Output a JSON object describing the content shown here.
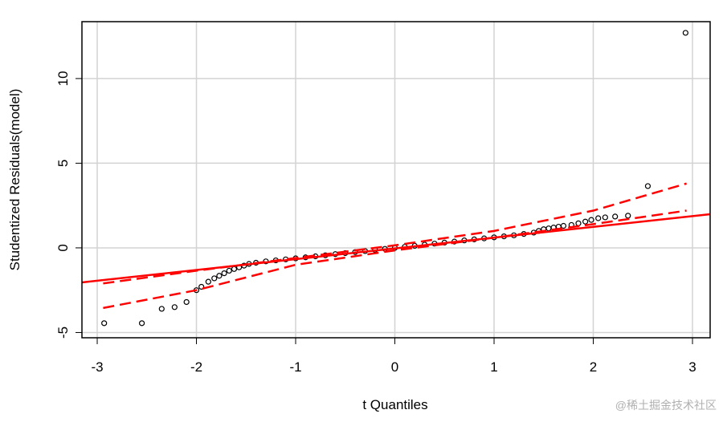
{
  "chart_data": {
    "type": "scatter",
    "xlabel": "t Quantiles",
    "ylabel": "Studentized Residuals(model)",
    "watermark": "@稀土掘金技术社区",
    "xlim": [
      -3.154,
      3.178
    ],
    "ylim": [
      -5.31,
      13.36
    ],
    "xticks": [
      -3,
      -2,
      -1,
      0,
      1,
      2,
      3
    ],
    "yticks": [
      -5,
      0,
      5,
      10
    ],
    "grid": true,
    "point_color": "#000000",
    "x": [
      -2.93,
      -2.55,
      -2.35,
      -2.22,
      -2.1,
      -2.0,
      -1.95,
      -1.88,
      -1.82,
      -1.77,
      -1.72,
      -1.67,
      -1.62,
      -1.57,
      -1.52,
      -1.47,
      -1.4,
      -1.3,
      -1.2,
      -1.1,
      -1.0,
      -0.9,
      -0.8,
      -0.7,
      -0.6,
      -0.5,
      -0.4,
      -0.3,
      -0.2,
      -0.1,
      0,
      0.1,
      0.2,
      0.3,
      0.4,
      0.5,
      0.6,
      0.7,
      0.8,
      0.9,
      1.0,
      1.1,
      1.2,
      1.3,
      1.4,
      1.45,
      1.5,
      1.55,
      1.6,
      1.65,
      1.7,
      1.78,
      1.85,
      1.92,
      1.98,
      2.05,
      2.12,
      2.22,
      2.35,
      2.55,
      2.93
    ],
    "values": [
      -4.45,
      -4.45,
      -3.6,
      -3.5,
      -3.2,
      -2.5,
      -2.3,
      -2.0,
      -1.8,
      -1.65,
      -1.5,
      -1.35,
      -1.25,
      -1.15,
      -1.05,
      -0.95,
      -0.88,
      -0.8,
      -0.74,
      -0.68,
      -0.62,
      -0.56,
      -0.5,
      -0.44,
      -0.37,
      -0.31,
      -0.25,
      -0.19,
      -0.12,
      -0.06,
      0,
      0.06,
      0.12,
      0.19,
      0.25,
      0.31,
      0.37,
      0.44,
      0.5,
      0.56,
      0.62,
      0.68,
      0.74,
      0.82,
      0.9,
      1.0,
      1.1,
      1.15,
      1.2,
      1.25,
      1.3,
      1.35,
      1.45,
      1.55,
      1.65,
      1.75,
      1.8,
      1.85,
      1.9,
      3.65,
      12.7
    ],
    "reference_line": {
      "color": "#ff0000",
      "x": [
        -3.154,
        3.178
      ],
      "y": [
        -2.04,
        1.99
      ]
    },
    "envelope": [
      {
        "color": "#ff0000",
        "x": [
          -2.94,
          -2,
          -1,
          0,
          1,
          2,
          2.94
        ],
        "y": [
          -2.1,
          -1.35,
          -0.6,
          0.15,
          1.0,
          2.2,
          3.8
        ]
      },
      {
        "color": "#ff0000",
        "x": [
          -2.94,
          -2,
          -1,
          0,
          1,
          2,
          2.94
        ],
        "y": [
          -3.55,
          -2.5,
          -1.0,
          -0.15,
          0.6,
          1.4,
          2.2
        ]
      }
    ]
  }
}
